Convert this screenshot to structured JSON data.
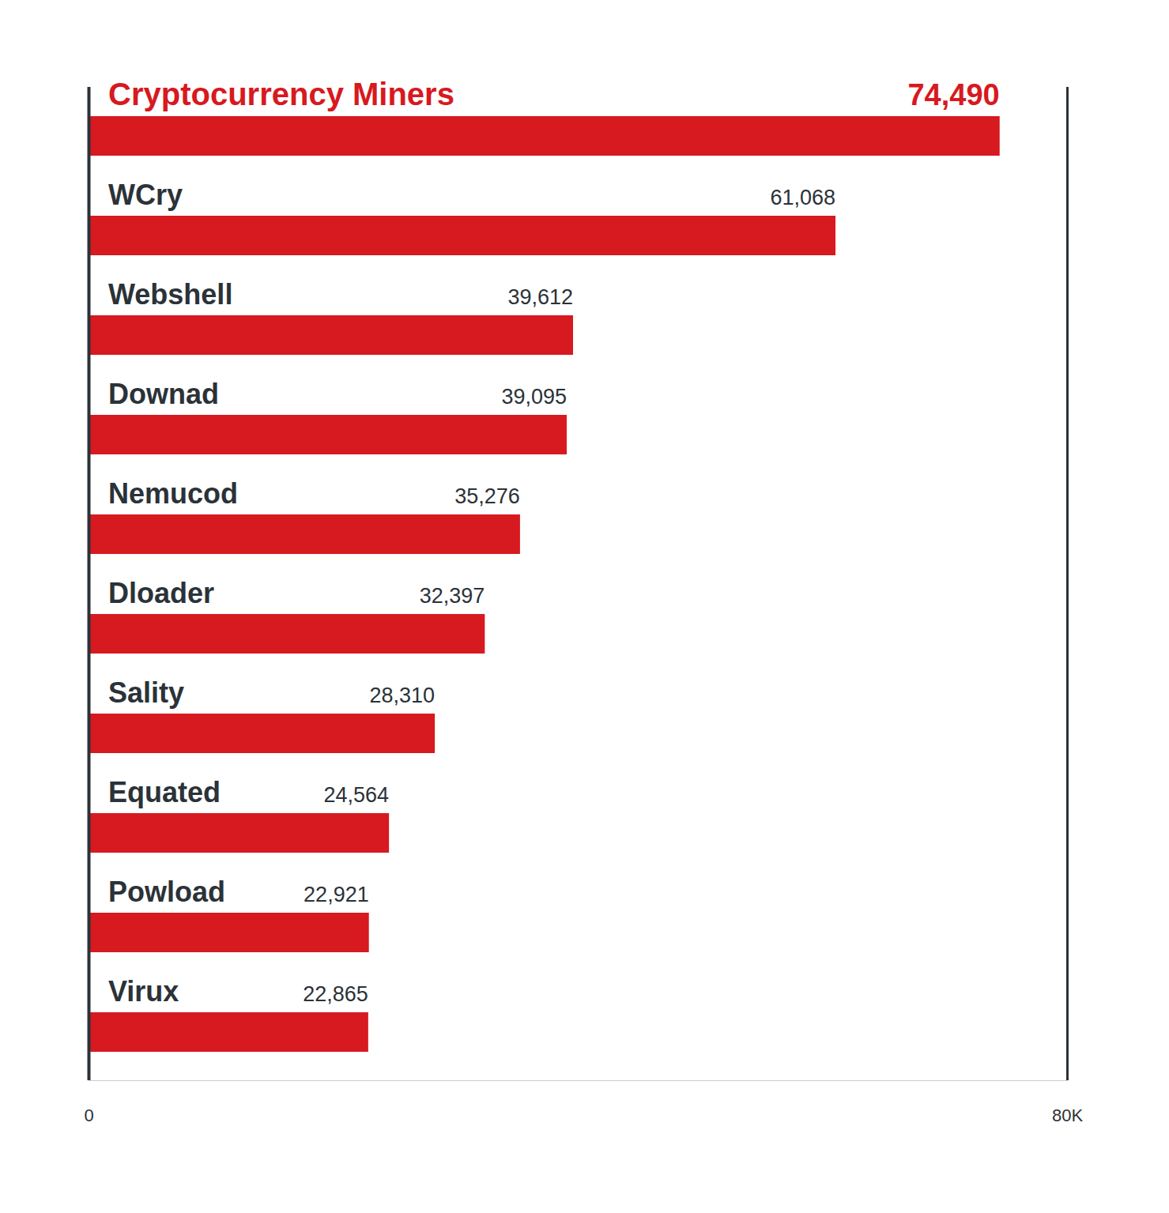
{
  "chart_data": {
    "type": "bar",
    "orientation": "horizontal",
    "categories": [
      "Cryptocurrency Miners",
      "WCry",
      "Webshell",
      "Downad",
      "Nemucod",
      "Dloader",
      "Sality",
      "Equated",
      "Powload",
      "Virux"
    ],
    "values": [
      74490,
      61068,
      39612,
      39095,
      35276,
      32397,
      28310,
      24564,
      22921,
      22865
    ],
    "value_labels": [
      "74,490",
      "61,068",
      "39,612",
      "39,095",
      "35,276",
      "32,397",
      "28,310",
      "24,564",
      "22,921",
      "22,865"
    ],
    "color": "#d71920",
    "xlim": [
      0,
      80000
    ],
    "xticks": [
      0,
      {
        "value": 80000,
        "label": "80K"
      }
    ],
    "data_labels": true
  }
}
